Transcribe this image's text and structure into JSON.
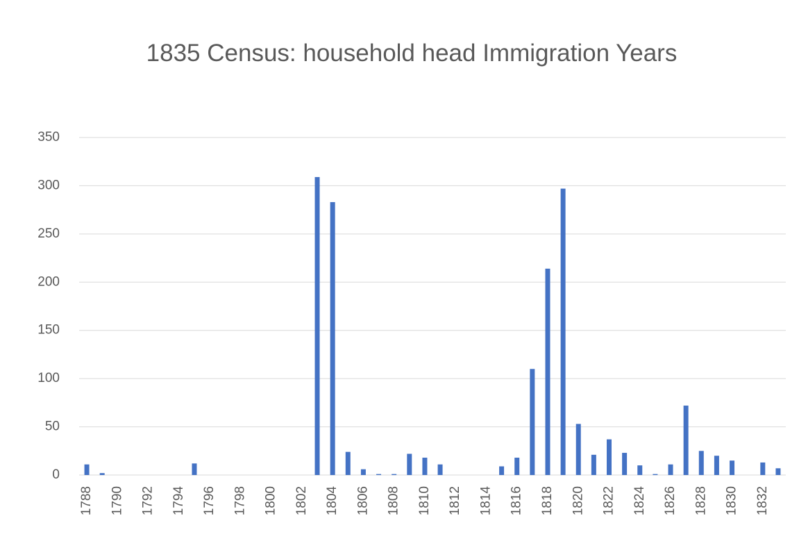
{
  "chart_data": {
    "type": "bar",
    "title": "1835 Census: household head Immigration Years",
    "categories": [
      1788,
      null,
      1790,
      null,
      1792,
      null,
      1794,
      null,
      1796,
      null,
      1798,
      null,
      1800,
      null,
      1802,
      null,
      1804,
      null,
      1806,
      null,
      1808,
      null,
      1810,
      null,
      1812,
      null,
      1814,
      null,
      1816,
      null,
      1818,
      null,
      1820,
      null,
      1822,
      null,
      1824,
      null,
      1826,
      null,
      1828,
      null,
      1830,
      null,
      1832,
      null
    ],
    "values": [
      11,
      2,
      0,
      0,
      0,
      0,
      0,
      12,
      0,
      0,
      0,
      0,
      0,
      0,
      0,
      309,
      283,
      24,
      6,
      1,
      1,
      22,
      18,
      11,
      0,
      0,
      0,
      9,
      18,
      110,
      214,
      297,
      53,
      21,
      37,
      23,
      10,
      1,
      11,
      72,
      25,
      20,
      15,
      0,
      13,
      7
    ],
    "color": "#4472c4",
    "ylim": [
      0,
      350
    ],
    "yticks": [
      0,
      50,
      100,
      150,
      200,
      250,
      300,
      350
    ],
    "grid": true
  }
}
